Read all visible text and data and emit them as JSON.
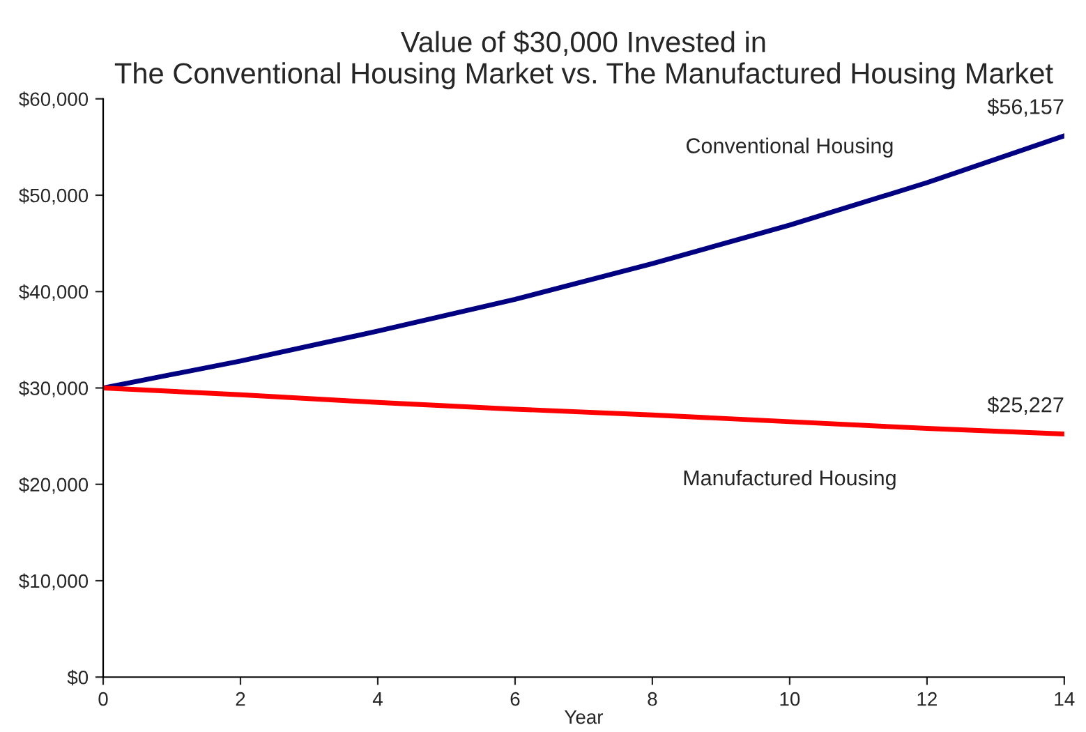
{
  "chart_data": {
    "type": "line",
    "title": "Value of $30,000 Invested in\nThe Conventional Housing Market vs. The Manufactured Housing Market",
    "xlabel": "Year",
    "x": [
      0,
      2,
      4,
      6,
      8,
      10,
      12,
      14
    ],
    "series": [
      {
        "name": "Conventional Housing",
        "color": "#000080",
        "values": [
          30000,
          32800,
          35900,
          39200,
          42900,
          46900,
          51300,
          56157
        ],
        "value_labels": [
          null,
          null,
          null,
          null,
          null,
          null,
          null,
          "$56,157"
        ]
      },
      {
        "name": "Manufactured Housing",
        "color": "#ff0000",
        "values": [
          30000,
          29300,
          28500,
          27800,
          27200,
          26500,
          25800,
          25227
        ],
        "value_labels": [
          null,
          null,
          null,
          null,
          null,
          null,
          null,
          "$25,227"
        ]
      }
    ],
    "xlim": [
      0,
      14
    ],
    "xticks": [
      0,
      2,
      4,
      6,
      8,
      10,
      12,
      14
    ],
    "ylim": [
      0,
      60000
    ],
    "yticks": [
      {
        "value": 0,
        "label": "$0"
      },
      {
        "value": 10000,
        "label": "$10,000"
      },
      {
        "value": 20000,
        "label": "$20,000"
      },
      {
        "value": 30000,
        "label": "$30,000"
      },
      {
        "value": 40000,
        "label": "$40,000"
      },
      {
        "value": 50000,
        "label": "$50,000"
      },
      {
        "value": 60000,
        "label": "$60,000"
      }
    ],
    "grid": false,
    "legend": false,
    "marker": "none",
    "line_style": "solid"
  }
}
